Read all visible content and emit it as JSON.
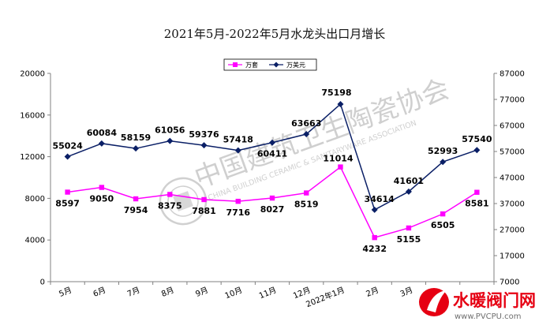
{
  "colors": {
    "units_series": "#ff00ff",
    "usd_series": "#0a1f66",
    "axis": "#808080",
    "watermark": "#a9a9a9",
    "logo_red": "#e60012"
  },
  "chart_data": {
    "type": "line",
    "title": "2021年5月-2022年5月水龙头出口月增长",
    "categories": [
      "5月",
      "6月",
      "7月",
      "8月",
      "9月",
      "10月",
      "11月",
      "12月",
      "2022年1月",
      "2月",
      "3月",
      "4月",
      "5月"
    ],
    "x_tick_labels": [
      "5月",
      "6月",
      "7月",
      "8月",
      "9月",
      "10月",
      "11月",
      "12月",
      "2022年1月",
      "2月",
      "3月"
    ],
    "series": [
      {
        "name": "万套",
        "axis": "left",
        "marker": "square",
        "color": "#ff00ff",
        "values": [
          8597,
          9050,
          7954,
          8375,
          7881,
          7716,
          8027,
          8519,
          11014,
          4232,
          5155,
          6505,
          8581
        ]
      },
      {
        "name": "万美元",
        "axis": "right",
        "marker": "diamond",
        "color": "#0a1f66",
        "values": [
          55024,
          60084,
          58159,
          61056,
          59376,
          57418,
          60411,
          63663,
          75198,
          34614,
          41601,
          52993,
          57540
        ]
      }
    ],
    "y_left": {
      "min": 0,
      "max": 20000,
      "ticks": [
        0,
        4000,
        8000,
        12000,
        16000,
        20000
      ]
    },
    "y_right": {
      "min": 7000,
      "max": 87000,
      "ticks": [
        7000,
        17000,
        27000,
        37000,
        47000,
        57000,
        67000,
        77000,
        87000
      ]
    },
    "legend": {
      "position": "top-center",
      "entries": [
        "万套",
        "万美元"
      ]
    },
    "grid": false
  },
  "watermark": {
    "chinese": "中国建筑卫生陶瓷协会",
    "english": "CHINA BUILDING CERAMIC & SANITARYWARE ASSOCIATION"
  },
  "logo": {
    "name": "水暖阀门网",
    "url": "www.PVCPU.com"
  }
}
